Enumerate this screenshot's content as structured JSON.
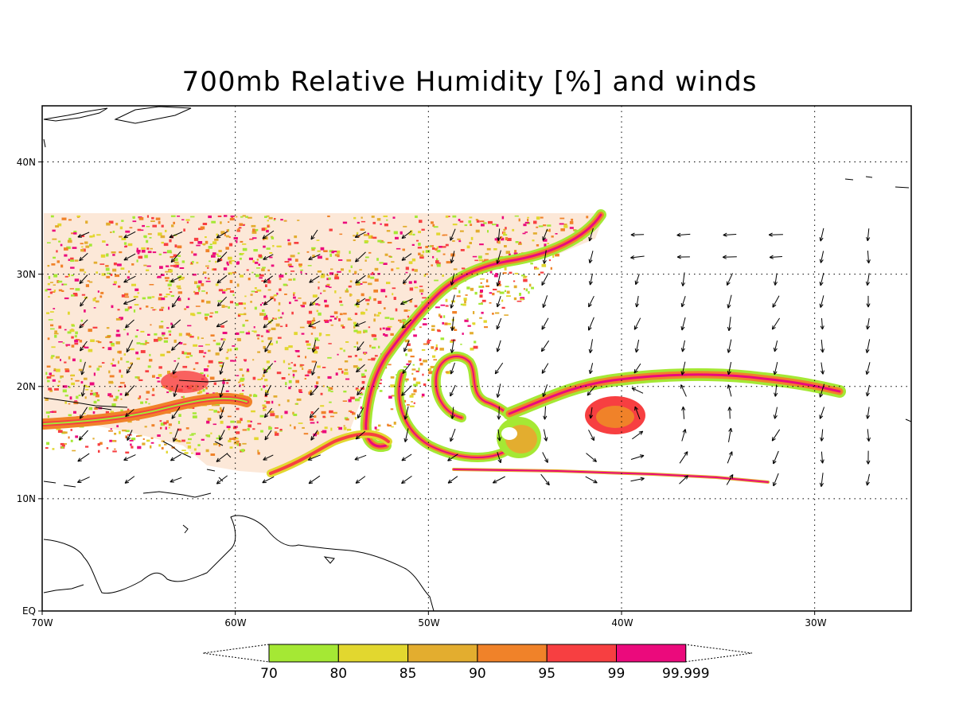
{
  "title": "700mb Relative Humidity [%] and winds",
  "map": {
    "lon_range": [
      -70,
      -25
    ],
    "lat_range": [
      0,
      45
    ],
    "x_ticks": [
      "70W",
      "60W",
      "50W",
      "40W",
      "30W"
    ],
    "y_ticks": [
      "EQ",
      "10N",
      "20N",
      "30N",
      "40N"
    ],
    "grid": "dotted, every 10 degrees",
    "fill_colors": [
      "#a5e834",
      "#e2d72f",
      "#e3ad2f",
      "#f08229",
      "#f73f41",
      "#eb0a7c"
    ]
  },
  "colorbar": {
    "labels": [
      "70",
      "80",
      "85",
      "90",
      "95",
      "99",
      "99.999"
    ],
    "colors": [
      "#a5e834",
      "#e2d72f",
      "#e3ad2f",
      "#f08229",
      "#f73f41",
      "#eb0a7c"
    ]
  }
}
